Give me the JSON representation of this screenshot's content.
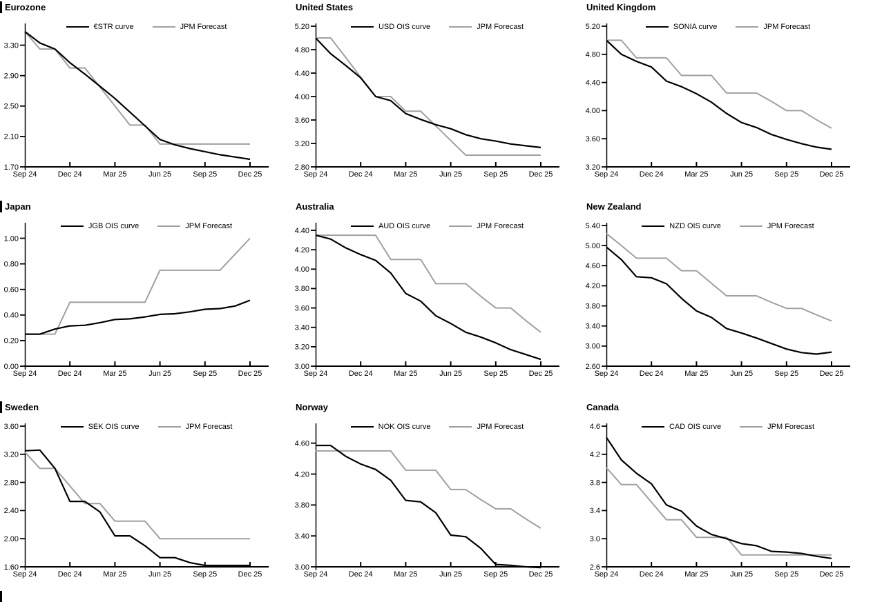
{
  "page": {
    "background": "#ffffff"
  },
  "colors": {
    "curve": "#000000",
    "forecast": "#a0a0a0",
    "axis": "#000000",
    "text": "#000000"
  },
  "x_axis": {
    "n_points": 16,
    "ticklabels": [
      "Sep 24",
      "Dec 24",
      "Mar 25",
      "Jun 25",
      "Sep 25",
      "Dec 25"
    ],
    "tick_indices": [
      0,
      3,
      6,
      9,
      12,
      15
    ]
  },
  "chart_data": [
    {
      "type": "line",
      "title": "Eurozone",
      "left_section_bar": true,
      "ylim": [
        1.7,
        3.55
      ],
      "yticks": [
        1.7,
        2.1,
        2.5,
        2.9,
        3.3
      ],
      "ydecimals": 2,
      "series": [
        {
          "name": "€STR curve",
          "role": "curve",
          "values": [
            3.48,
            3.33,
            3.25,
            3.07,
            2.92,
            2.76,
            2.6,
            2.42,
            2.24,
            2.06,
            1.99,
            1.94,
            1.9,
            1.86,
            1.83,
            1.8
          ]
        },
        {
          "name": "JPM Forecast",
          "role": "forecast",
          "values": [
            3.48,
            3.25,
            3.25,
            3.0,
            3.0,
            2.75,
            2.5,
            2.25,
            2.25,
            2.0,
            2.0,
            2.0,
            2.0,
            2.0,
            2.0,
            2.0
          ]
        }
      ]
    },
    {
      "type": "line",
      "title": "United States",
      "left_section_bar": false,
      "ylim": [
        2.8,
        5.2
      ],
      "yticks": [
        2.8,
        3.2,
        3.6,
        4.0,
        4.4,
        4.8,
        5.2
      ],
      "ydecimals": 2,
      "series": [
        {
          "name": "USD OIS curve",
          "role": "curve",
          "values": [
            5.0,
            4.73,
            4.53,
            4.32,
            4.0,
            3.93,
            3.71,
            3.61,
            3.52,
            3.45,
            3.35,
            3.28,
            3.24,
            3.19,
            3.16,
            3.13
          ]
        },
        {
          "name": "JPM Forecast",
          "role": "forecast",
          "values": [
            5.0,
            5.0,
            4.67,
            4.33,
            4.0,
            4.0,
            3.75,
            3.75,
            3.5,
            3.25,
            3.0,
            3.0,
            3.0,
            3.0,
            3.0,
            3.0
          ]
        }
      ]
    },
    {
      "type": "line",
      "title": "United Kingdom",
      "left_section_bar": false,
      "ylim": [
        3.2,
        5.2
      ],
      "yticks": [
        3.2,
        3.6,
        4.0,
        4.4,
        4.8,
        5.2
      ],
      "ydecimals": 2,
      "series": [
        {
          "name": "SONIA curve",
          "role": "curve",
          "values": [
            5.0,
            4.8,
            4.7,
            4.62,
            4.42,
            4.34,
            4.24,
            4.12,
            3.96,
            3.83,
            3.76,
            3.66,
            3.59,
            3.53,
            3.48,
            3.45
          ]
        },
        {
          "name": "JPM Forecast",
          "role": "forecast",
          "values": [
            5.0,
            5.0,
            4.75,
            4.75,
            4.75,
            4.5,
            4.5,
            4.5,
            4.25,
            4.25,
            4.25,
            4.13,
            4.0,
            4.0,
            3.87,
            3.75
          ]
        }
      ]
    },
    {
      "type": "line",
      "title": "Japan",
      "left_section_bar": true,
      "ylim": [
        0.0,
        1.1
      ],
      "yticks": [
        0.0,
        0.2,
        0.4,
        0.6,
        0.8,
        1.0
      ],
      "ydecimals": 2,
      "series": [
        {
          "name": "JGB OIS curve",
          "role": "curve",
          "values": [
            0.25,
            0.25,
            0.29,
            0.315,
            0.32,
            0.34,
            0.365,
            0.37,
            0.385,
            0.405,
            0.41,
            0.425,
            0.445,
            0.45,
            0.47,
            0.515
          ]
        },
        {
          "name": "JPM Forecast",
          "role": "forecast",
          "values": [
            0.25,
            0.25,
            0.25,
            0.5,
            0.5,
            0.5,
            0.5,
            0.5,
            0.5,
            0.75,
            0.75,
            0.75,
            0.75,
            0.75,
            0.875,
            1.0
          ]
        }
      ]
    },
    {
      "type": "line",
      "title": "Australia",
      "left_section_bar": false,
      "ylim": [
        3.0,
        4.45
      ],
      "yticks": [
        3.0,
        3.2,
        3.4,
        3.6,
        3.8,
        4.0,
        4.2,
        4.4
      ],
      "ydecimals": 2,
      "series": [
        {
          "name": "AUD OIS curve",
          "role": "curve",
          "values": [
            4.35,
            4.31,
            4.22,
            4.15,
            4.09,
            3.96,
            3.75,
            3.67,
            3.52,
            3.44,
            3.35,
            3.3,
            3.24,
            3.17,
            3.12,
            3.07
          ]
        },
        {
          "name": "JPM Forecast",
          "role": "forecast",
          "values": [
            4.35,
            4.35,
            4.35,
            4.35,
            4.35,
            4.1,
            4.1,
            4.1,
            3.85,
            3.85,
            3.85,
            3.72,
            3.6,
            3.6,
            3.47,
            3.35
          ]
        }
      ]
    },
    {
      "type": "line",
      "title": "New Zealand",
      "left_section_bar": false,
      "ylim": [
        2.6,
        5.4
      ],
      "yticks": [
        2.6,
        3.0,
        3.4,
        3.8,
        4.2,
        4.6,
        5.0,
        5.4
      ],
      "ydecimals": 2,
      "series": [
        {
          "name": "NZD OIS curve",
          "role": "curve",
          "values": [
            4.97,
            4.72,
            4.38,
            4.36,
            4.24,
            3.95,
            3.7,
            3.57,
            3.35,
            3.26,
            3.16,
            3.05,
            2.94,
            2.87,
            2.84,
            2.88
          ]
        },
        {
          "name": "JPM Forecast",
          "role": "forecast",
          "values": [
            5.24,
            5.0,
            4.75,
            4.75,
            4.75,
            4.5,
            4.5,
            4.25,
            4.0,
            4.0,
            4.0,
            3.87,
            3.75,
            3.75,
            3.62,
            3.5
          ]
        }
      ]
    },
    {
      "type": "line",
      "title": "Sweden",
      "left_section_bar": true,
      "ylim": [
        1.6,
        3.6
      ],
      "yticks": [
        1.6,
        2.0,
        2.4,
        2.8,
        3.2,
        3.6
      ],
      "ydecimals": 2,
      "series": [
        {
          "name": "SEK OIS curve",
          "role": "curve",
          "values": [
            3.25,
            3.26,
            3.0,
            2.53,
            2.53,
            2.38,
            2.04,
            2.04,
            1.9,
            1.73,
            1.73,
            1.66,
            1.62,
            1.62,
            1.62,
            1.62
          ]
        },
        {
          "name": "JPM Forecast",
          "role": "forecast",
          "values": [
            3.23,
            3.0,
            3.0,
            2.75,
            2.5,
            2.5,
            2.25,
            2.25,
            2.25,
            2.0,
            2.0,
            2.0,
            2.0,
            2.0,
            2.0,
            2.0
          ]
        }
      ]
    },
    {
      "type": "line",
      "title": "Norway",
      "left_section_bar": false,
      "ylim": [
        3.0,
        4.82
      ],
      "yticks": [
        3.0,
        3.4,
        3.8,
        4.2,
        4.6
      ],
      "ydecimals": 2,
      "series": [
        {
          "name": "NOK OIS curve",
          "role": "curve",
          "values": [
            4.57,
            4.57,
            4.43,
            4.33,
            4.26,
            4.12,
            3.86,
            3.84,
            3.7,
            3.41,
            3.39,
            3.24,
            3.03,
            3.02,
            3.0,
            2.99
          ]
        },
        {
          "name": "JPM Forecast",
          "role": "forecast",
          "values": [
            4.5,
            4.5,
            4.5,
            4.5,
            4.5,
            4.5,
            4.25,
            4.25,
            4.25,
            4.0,
            4.0,
            3.87,
            3.75,
            3.75,
            3.62,
            3.5
          ]
        }
      ]
    },
    {
      "type": "line",
      "title": "Canada",
      "left_section_bar": false,
      "ylim": [
        2.6,
        4.6
      ],
      "yticks": [
        2.6,
        3.0,
        3.4,
        3.8,
        4.2,
        4.6
      ],
      "ydecimals": 1,
      "series": [
        {
          "name": "CAD OIS curve",
          "role": "curve",
          "values": [
            4.44,
            4.12,
            3.93,
            3.78,
            3.48,
            3.39,
            3.18,
            3.06,
            3.0,
            2.93,
            2.9,
            2.82,
            2.81,
            2.79,
            2.75,
            2.72
          ]
        },
        {
          "name": "JPM Forecast",
          "role": "forecast",
          "values": [
            4.01,
            3.77,
            3.77,
            3.52,
            3.27,
            3.27,
            3.02,
            3.02,
            3.02,
            2.77,
            2.77,
            2.77,
            2.77,
            2.77,
            2.77,
            2.77
          ]
        }
      ]
    }
  ]
}
